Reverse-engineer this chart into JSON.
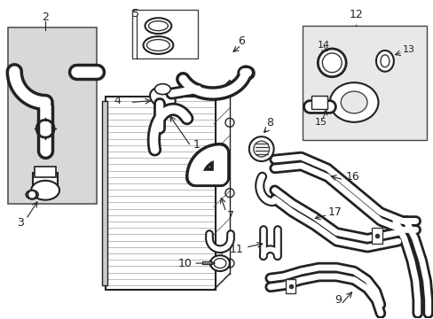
{
  "bg_color": "#ffffff",
  "line_color": "#222222",
  "gray_fill": "#cccccc",
  "light_gray": "#e8e8e8"
}
